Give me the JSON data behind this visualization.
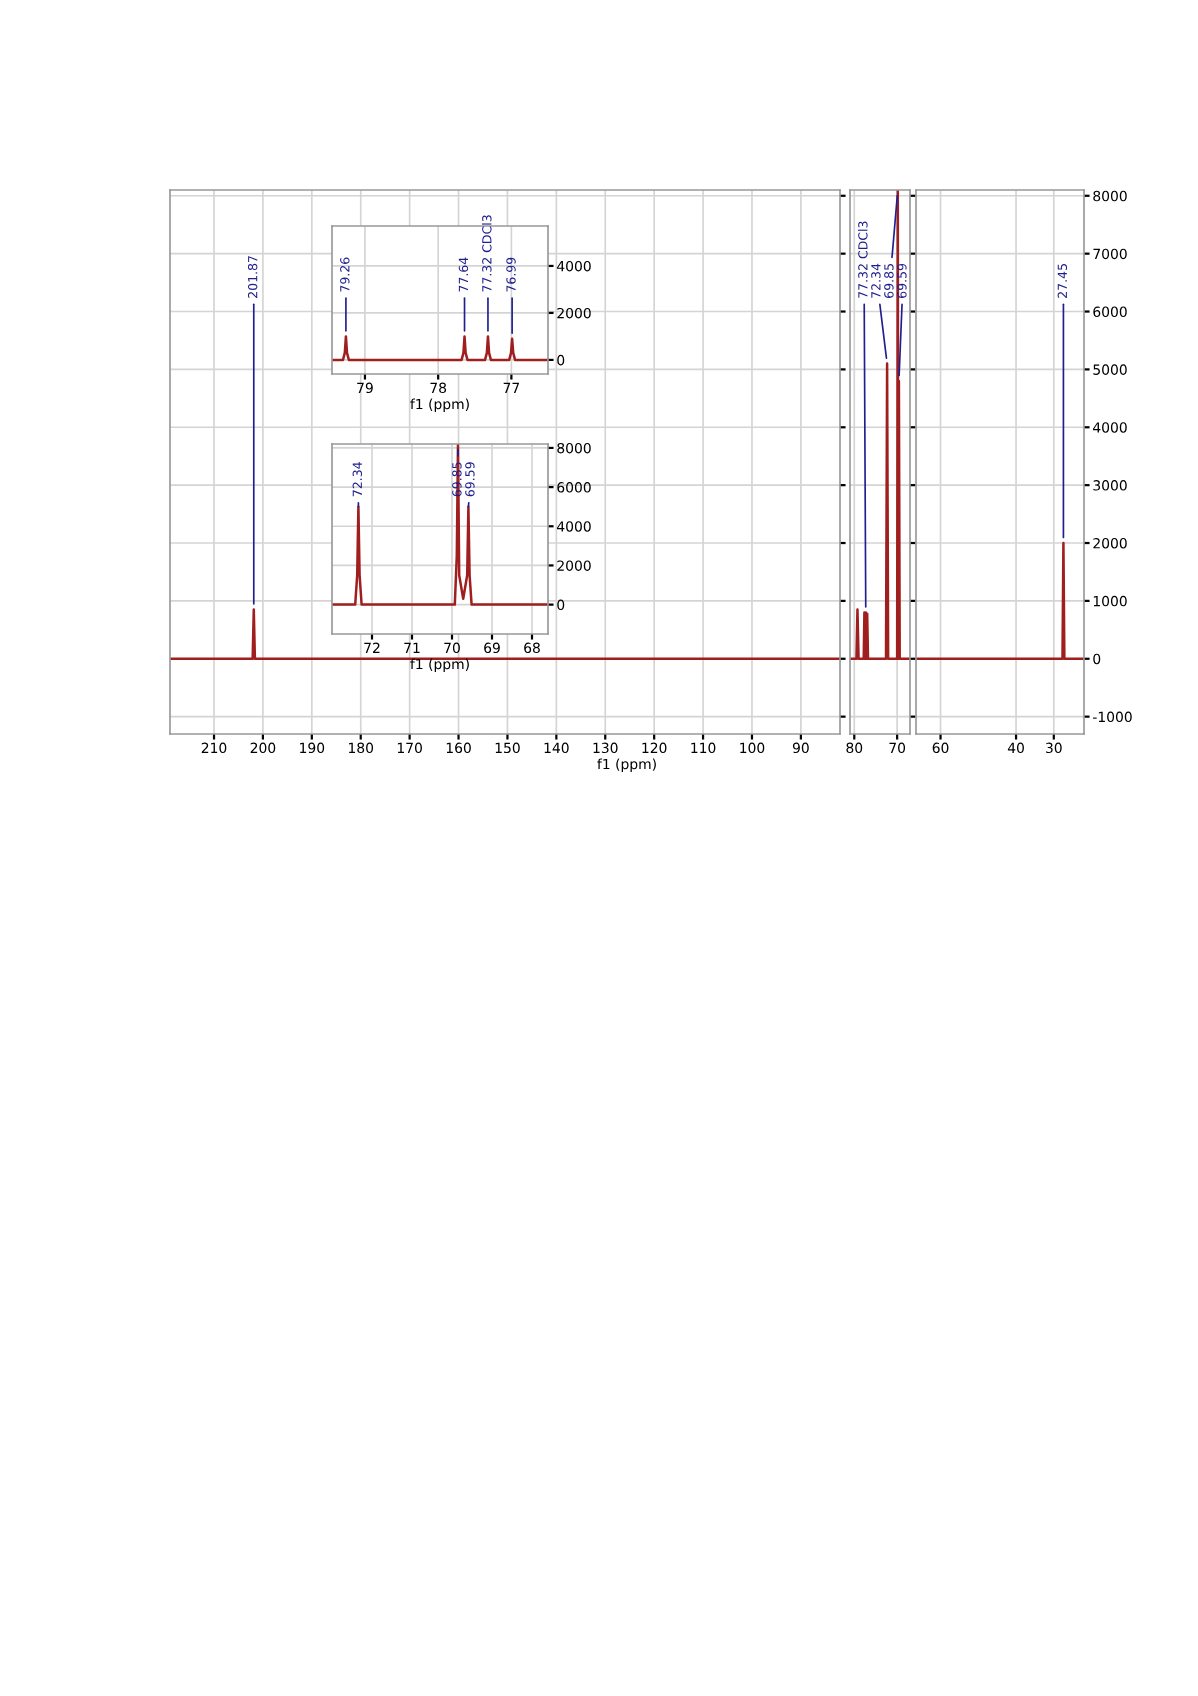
{
  "chart_data": [
    {
      "type": "line",
      "xlabel": "f1 (ppm)",
      "xlim": [
        219,
        82
      ],
      "xticks": [
        210,
        200,
        190,
        180,
        170,
        160,
        150,
        140,
        130,
        120,
        110,
        100,
        90
      ],
      "ylim": [
        -1300,
        8100
      ],
      "yticks": [
        -1000,
        0,
        1000,
        2000,
        3000,
        4000,
        5000,
        6000,
        7000,
        8000
      ],
      "grid": true,
      "tick_labels": "x",
      "series": [
        {
          "color": "#a01e1e",
          "x": [
            219,
            202.1,
            201.87,
            201.64,
            82
          ],
          "values": [
            0,
            0,
            850,
            0,
            0
          ]
        }
      ],
      "annotations": [
        {
          "text": "201.87",
          "x": 201.87,
          "y": 850
        }
      ]
    },
    {
      "type": "line",
      "xlim": [
        81,
        67
      ],
      "xticks": [
        80,
        70
      ],
      "ylim": [
        -1300,
        8100
      ],
      "yticks": [
        -1000,
        0,
        1000,
        2000,
        3000,
        4000,
        5000,
        6000,
        7000,
        8000
      ],
      "grid": true,
      "tick_labels": "x",
      "series": [
        {
          "color": "#a01e1e",
          "x": [
            81,
            79.5,
            79.26,
            79.0,
            77.8,
            77.64,
            77.48,
            77.32,
            77.15,
            76.99,
            76.8,
            72.6,
            72.34,
            72.1,
            70.0,
            69.85,
            69.72,
            69.59,
            69.4,
            67
          ],
          "values": [
            0,
            0,
            850,
            0,
            0,
            800,
            0,
            800,
            0,
            780,
            0,
            0,
            5100,
            0,
            0,
            8100,
            0,
            4800,
            0,
            0
          ]
        }
      ],
      "annotations": [
        {
          "text": "77.32 CDCl3",
          "x": 77.32,
          "y": 800
        },
        {
          "text": "72.34",
          "x": 72.34,
          "y": 5100
        },
        {
          "text": "69.85",
          "x": 69.85,
          "y": 8100
        },
        {
          "text": "69.59",
          "x": 69.59,
          "y": 4800
        }
      ]
    },
    {
      "type": "line",
      "xlim": [
        66.5,
        22
      ],
      "xticks": [
        60,
        40,
        30
      ],
      "ylim": [
        -1300,
        8100
      ],
      "yticks": [
        -1000,
        0,
        1000,
        2000,
        3000,
        4000,
        5000,
        6000,
        7000,
        8000
      ],
      "grid": true,
      "series": [
        {
          "color": "#a01e1e",
          "x": [
            66.5,
            27.7,
            27.45,
            27.2,
            22
          ],
          "values": [
            0,
            0,
            2000,
            0,
            0
          ]
        }
      ],
      "annotations": [
        {
          "text": "27.45",
          "x": 27.45,
          "y": 2000
        }
      ]
    },
    {
      "type": "line",
      "xlabel": "f1 (ppm)",
      "xlim": [
        79.45,
        76.5
      ],
      "xticks": [
        79,
        78,
        77
      ],
      "ylim": [
        -600,
        5700
      ],
      "yticks": [
        0,
        2000,
        4000
      ],
      "grid": true,
      "series": [
        {
          "color": "#a01e1e",
          "x": [
            79.45,
            79.3,
            79.275,
            79.26,
            79.245,
            79.22,
            77.68,
            77.655,
            77.64,
            77.625,
            77.6,
            77.36,
            77.335,
            77.32,
            77.305,
            77.28,
            77.03,
            77.005,
            76.99,
            76.975,
            76.95,
            76.5
          ],
          "values": [
            0,
            0,
            300,
            1000,
            300,
            0,
            0,
            300,
            1000,
            300,
            0,
            0,
            300,
            1000,
            300,
            0,
            0,
            300,
            900,
            300,
            0,
            0
          ]
        }
      ],
      "annotations": [
        {
          "text": "79.26",
          "x": 79.26,
          "y": 1000
        },
        {
          "text": "77.64",
          "x": 77.64,
          "y": 1000
        },
        {
          "text": "77.32 CDCl3",
          "x": 77.32,
          "y": 1000
        },
        {
          "text": "76.99",
          "x": 76.99,
          "y": 900
        }
      ]
    },
    {
      "type": "line",
      "xlabel": "f1 (ppm)",
      "xlim": [
        73.0,
        67.6
      ],
      "xticks": [
        72,
        71,
        70,
        69,
        68
      ],
      "ylim": [
        -1500,
        8200
      ],
      "yticks": [
        0,
        2000,
        4000,
        6000,
        8000
      ],
      "grid": true,
      "series": [
        {
          "color": "#a01e1e",
          "x": [
            73.0,
            72.42,
            72.37,
            72.34,
            72.31,
            72.26,
            69.93,
            69.88,
            69.85,
            69.82,
            69.72,
            69.62,
            69.59,
            69.56,
            69.51,
            67.6
          ],
          "values": [
            0,
            0,
            1500,
            5000,
            1500,
            0,
            0,
            2500,
            8200,
            1500,
            300,
            1500,
            5000,
            1500,
            0,
            0
          ]
        }
      ],
      "annotations": [
        {
          "text": "72.34",
          "x": 72.34,
          "y": 5000
        },
        {
          "text": "69.85",
          "x": 69.85,
          "y": 8200
        },
        {
          "text": "69.59",
          "x": 69.59,
          "y": 5000
        }
      ]
    }
  ]
}
